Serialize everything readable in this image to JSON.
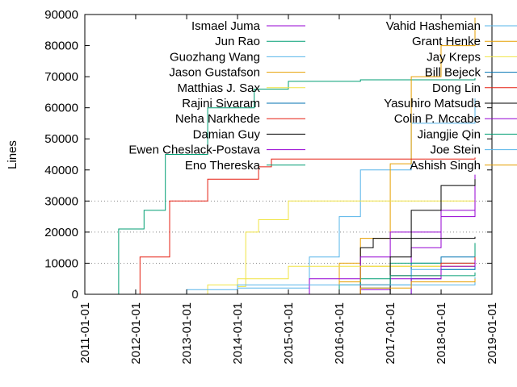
{
  "chart_data": {
    "type": "line",
    "title": "",
    "xlabel": "",
    "ylabel": "Lines",
    "xlim": [
      "2011-01-01",
      "2019-01-01"
    ],
    "ylim": [
      0,
      90000
    ],
    "x_ticks": [
      "2011-01-01",
      "2012-01-01",
      "2013-01-01",
      "2014-01-01",
      "2015-01-01",
      "2016-01-01",
      "2017-01-01",
      "2018-01-01",
      "2019-01-01"
    ],
    "y_ticks": [
      0,
      10000,
      20000,
      30000,
      40000,
      50000,
      60000,
      70000,
      80000,
      90000
    ],
    "grid": "horizontal dotted at 10000, 20000, 30000",
    "legend_placement": "top, two columns",
    "series": [
      {
        "name": "Ismael Juma",
        "color": "#9400d3",
        "points": [
          [
            "2015-08-01",
            0
          ],
          [
            "2016-06-01",
            1500
          ],
          [
            "2017-01-01",
            5000
          ],
          [
            "2017-06-01",
            15000
          ],
          [
            "2018-01-01",
            27000
          ],
          [
            "2018-09-01",
            38500
          ]
        ]
      },
      {
        "name": "Jun Rao",
        "color": "#009e73",
        "points": [
          [
            "2011-08-01",
            0
          ],
          [
            "2011-09-01",
            21000
          ],
          [
            "2012-03-01",
            27000
          ],
          [
            "2012-08-01",
            45000
          ],
          [
            "2013-06-01",
            60000
          ],
          [
            "2014-05-01",
            66000
          ],
          [
            "2015-01-01",
            68500
          ],
          [
            "2016-06-01",
            69000
          ],
          [
            "2018-09-01",
            69500
          ]
        ]
      },
      {
        "name": "Guozhang Wang",
        "color": "#56b4e9",
        "points": [
          [
            "2013-06-01",
            0
          ],
          [
            "2014-01-01",
            2000
          ],
          [
            "2015-06-01",
            12000
          ],
          [
            "2016-01-01",
            25000
          ],
          [
            "2016-06-01",
            40000
          ],
          [
            "2017-06-01",
            55000
          ],
          [
            "2018-09-01",
            63000
          ]
        ]
      },
      {
        "name": "Jason Gustafson",
        "color": "#e69f00",
        "points": [
          [
            "2015-06-01",
            0
          ],
          [
            "2016-01-01",
            10000
          ],
          [
            "2016-06-01",
            18000
          ],
          [
            "2017-01-01",
            42000
          ],
          [
            "2017-06-01",
            70000
          ],
          [
            "2018-01-01",
            80000
          ],
          [
            "2018-09-01",
            89000
          ]
        ]
      },
      {
        "name": "Matthias J. Sax",
        "color": "#f0e442",
        "points": [
          [
            "2013-08-01",
            0
          ],
          [
            "2014-01-01",
            2500
          ],
          [
            "2014-03-01",
            20000
          ],
          [
            "2014-06-01",
            24000
          ],
          [
            "2015-01-01",
            30000
          ],
          [
            "2018-09-01",
            30500
          ]
        ]
      },
      {
        "name": "Rajini Sivaram",
        "color": "#0072b2",
        "points": [
          [
            "2015-10-01",
            0
          ],
          [
            "2016-06-01",
            2000
          ],
          [
            "2017-01-01",
            6000
          ],
          [
            "2017-06-01",
            10000
          ],
          [
            "2018-01-01",
            12000
          ],
          [
            "2018-09-01",
            14000
          ]
        ]
      },
      {
        "name": "Neha Narkhede",
        "color": "#e51e10",
        "points": [
          [
            "2011-09-01",
            0
          ],
          [
            "2012-02-01",
            12000
          ],
          [
            "2012-09-01",
            30000
          ],
          [
            "2013-06-01",
            37000
          ],
          [
            "2014-06-01",
            41000
          ],
          [
            "2014-09-01",
            43500
          ],
          [
            "2018-09-01",
            44000
          ]
        ]
      },
      {
        "name": "Damian Guy",
        "color": "#000000",
        "points": [
          [
            "2015-12-01",
            0
          ],
          [
            "2016-06-01",
            15000
          ],
          [
            "2016-09-01",
            18000
          ],
          [
            "2018-09-01",
            18500
          ]
        ]
      },
      {
        "name": "Ewen Cheslack-Postava",
        "color": "#9400d3",
        "points": [
          [
            "2014-10-01",
            0
          ],
          [
            "2015-06-01",
            5000
          ],
          [
            "2016-06-01",
            12000
          ],
          [
            "2017-01-01",
            20000
          ],
          [
            "2018-01-01",
            25000
          ],
          [
            "2018-09-01",
            30500
          ]
        ]
      },
      {
        "name": "Eno Thereska",
        "color": "#009e73",
        "points": [
          [
            "2015-10-01",
            0
          ],
          [
            "2016-06-01",
            5000
          ],
          [
            "2017-01-01",
            10000
          ],
          [
            "2018-09-01",
            16500
          ]
        ]
      },
      {
        "name": "Vahid Hashemian",
        "color": "#56b4e9",
        "points": [
          [
            "2015-10-01",
            0
          ],
          [
            "2016-06-01",
            3000
          ],
          [
            "2017-06-01",
            8000
          ],
          [
            "2018-09-01",
            11000
          ]
        ]
      },
      {
        "name": "Grant Henke",
        "color": "#e69f00",
        "points": [
          [
            "2015-06-01",
            0
          ],
          [
            "2016-01-01",
            4000
          ],
          [
            "2016-06-01",
            9000
          ],
          [
            "2018-09-01",
            10500
          ]
        ]
      },
      {
        "name": "Jay Kreps",
        "color": "#f0e442",
        "points": [
          [
            "2012-06-01",
            0
          ],
          [
            "2013-06-01",
            3000
          ],
          [
            "2014-01-01",
            5000
          ],
          [
            "2015-01-01",
            9000
          ],
          [
            "2018-09-01",
            10000
          ]
        ]
      },
      {
        "name": "Bill Bejeck",
        "color": "#0072b2",
        "points": [
          [
            "2016-06-01",
            0
          ],
          [
            "2017-06-01",
            5000
          ],
          [
            "2018-01-01",
            8000
          ],
          [
            "2018-09-01",
            10000
          ]
        ]
      },
      {
        "name": "Dong Lin",
        "color": "#e51e10",
        "points": [
          [
            "2015-10-01",
            0
          ],
          [
            "2016-06-01",
            3000
          ],
          [
            "2017-01-01",
            6000
          ],
          [
            "2018-01-01",
            10000
          ],
          [
            "2018-09-01",
            12000
          ]
        ]
      },
      {
        "name": "Yasuhiro Matsuda",
        "color": "#000000",
        "points": [
          [
            "2016-06-01",
            0
          ],
          [
            "2017-01-01",
            12000
          ],
          [
            "2017-06-01",
            27000
          ],
          [
            "2018-01-01",
            35000
          ],
          [
            "2018-09-01",
            37000
          ]
        ]
      },
      {
        "name": "Colin P. Mccabe",
        "color": "#9400d3",
        "points": [
          [
            "2016-06-01",
            0
          ],
          [
            "2017-06-01",
            5000
          ],
          [
            "2018-01-01",
            9000
          ],
          [
            "2018-09-01",
            11000
          ]
        ]
      },
      {
        "name": "Jiangjie Qin",
        "color": "#009e73",
        "points": [
          [
            "2015-01-01",
            0
          ],
          [
            "2016-01-01",
            3000
          ],
          [
            "2017-01-01",
            6000
          ],
          [
            "2018-09-01",
            7000
          ]
        ]
      },
      {
        "name": "Joe Stein",
        "color": "#56b4e9",
        "points": [
          [
            "2012-01-01",
            0
          ],
          [
            "2013-01-01",
            1500
          ],
          [
            "2014-01-01",
            3000
          ],
          [
            "2018-09-01",
            5500
          ]
        ]
      },
      {
        "name": "Ashish Singh",
        "color": "#e69f00",
        "points": [
          [
            "2015-06-01",
            0
          ],
          [
            "2016-06-01",
            2000
          ],
          [
            "2017-06-01",
            4000
          ],
          [
            "2018-09-01",
            5000
          ]
        ]
      }
    ]
  }
}
